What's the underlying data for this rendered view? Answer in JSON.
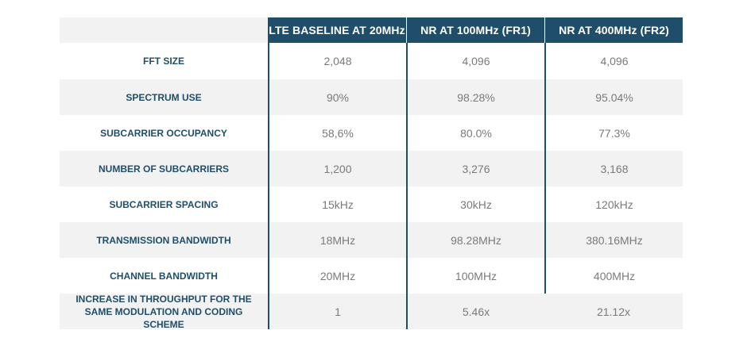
{
  "table": {
    "headers": [
      "",
      "LTE BASELINE AT 20MHz",
      "NR AT 100MHz (FR1)",
      "NR AT 400MHz (FR2)"
    ],
    "rows": [
      {
        "label": "FFT SIZE",
        "values": [
          "2,048",
          "4,096",
          "4,096"
        ]
      },
      {
        "label": "SPECTRUM USE",
        "values": [
          "90%",
          "98.28%",
          "95.04%"
        ]
      },
      {
        "label": "SUBCARRIER OCCUPANCY",
        "values": [
          "58,6%",
          "80.0%",
          "77.3%"
        ]
      },
      {
        "label": "NUMBER OF SUBCARRIERS",
        "values": [
          "1,200",
          "3,276",
          "3,168"
        ]
      },
      {
        "label": "SUBCARRIER SPACING",
        "values": [
          "15kHz",
          "30kHz",
          "120kHz"
        ]
      },
      {
        "label": "TRANSMISSION BANDWIDTH",
        "values": [
          "18MHz",
          "98.28MHz",
          "380.16MHz"
        ]
      },
      {
        "label": "CHANNEL BANDWIDTH",
        "values": [
          "20MHz",
          "100MHz",
          "400MHz"
        ]
      },
      {
        "label_line1": "INCREASE IN THROUGHPUT FOR THE",
        "label_line2": "SAME MODULATION AND CODING SCHEME",
        "values": [
          "1",
          "5.46x",
          "21.12x"
        ]
      }
    ]
  },
  "colors": {
    "header_bg": "#1f4e6a",
    "label_text": "#1f4e6a",
    "value_text": "#7a7a7a",
    "alt_row_bg": "#f2f2f2"
  }
}
